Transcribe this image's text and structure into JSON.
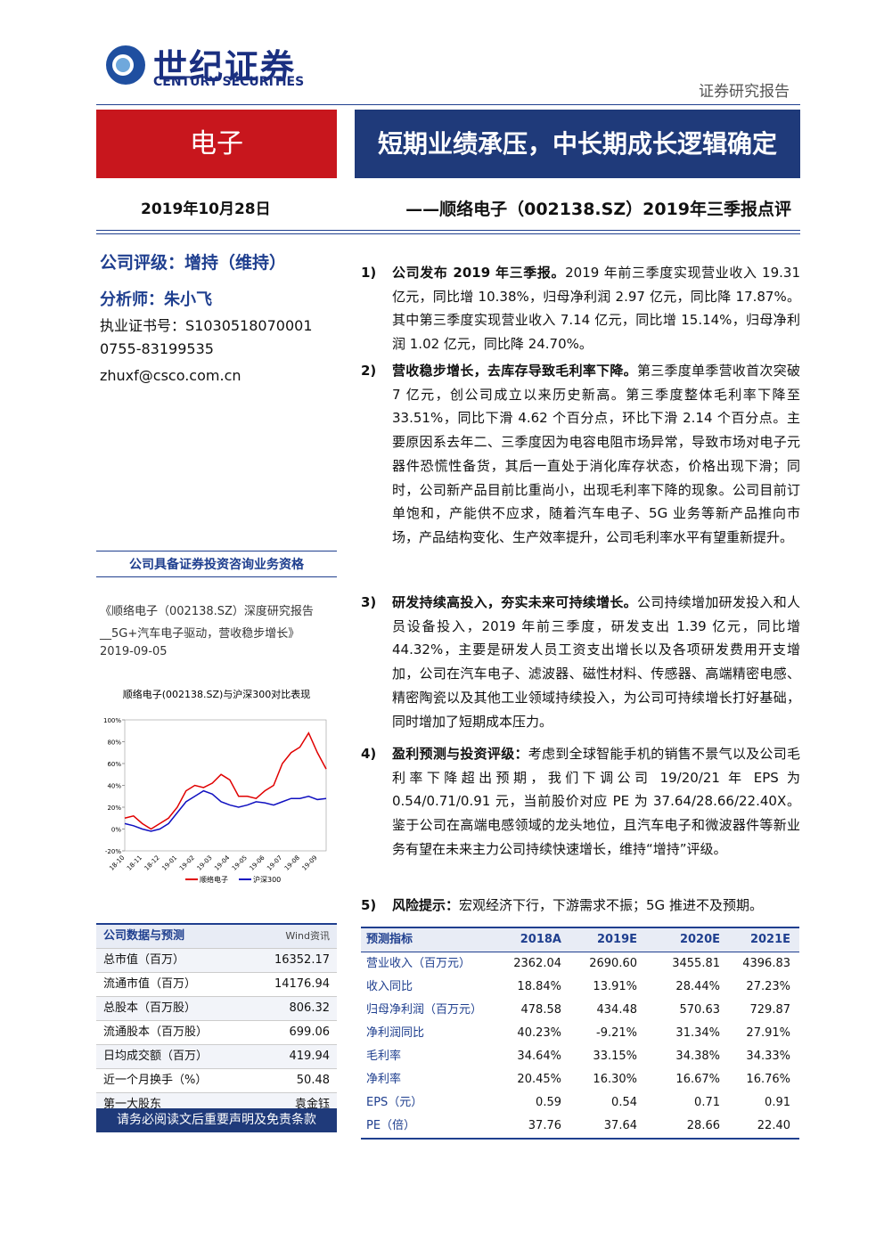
{
  "header": {
    "logo_cn": "世纪证券",
    "logo_en": "CENTURY SECURITIES",
    "report_type": "证券研究报告",
    "sector": "电子",
    "title": "短期业绩承压，中长期成长逻辑确定",
    "date": "2019年10月28日",
    "subtitle": "——顺络电子（002138.SZ）2019年三季报点评"
  },
  "sidebar": {
    "rating": "公司评级：增持（维持）",
    "analyst": "分析师：朱小飞",
    "license": "执业证书号：S1030518070001",
    "phone": "0755-83199535",
    "email": "zhuxf@csco.com.cn",
    "qualification": "公司具备证券投资咨询业务资格",
    "related_report": "《顺络电子（002138.SZ）深度研究报告__5G+汽车电子驱动，营收稳步增长》",
    "related_date": "2019-09-05"
  },
  "chart_data": {
    "type": "line",
    "title": "顺络电子(002138.SZ)与沪深300对比表现",
    "categories": [
      "18-10",
      null,
      "18-11",
      null,
      "18-12",
      null,
      "19-01",
      null,
      "19-02",
      null,
      "19-03",
      null,
      "19-04",
      null,
      "19-05",
      null,
      "19-06",
      null,
      "19-07",
      null,
      "19-08",
      null,
      "19-09",
      null
    ],
    "series": [
      {
        "name": "顺络电子",
        "color": "#e00000",
        "values": [
          10,
          12,
          5,
          0,
          5,
          10,
          20,
          35,
          40,
          38,
          42,
          50,
          45,
          30,
          30,
          28,
          35,
          40,
          60,
          70,
          75,
          88,
          70,
          55
        ]
      },
      {
        "name": "沪深300",
        "color": "#1010c0",
        "values": [
          5,
          3,
          0,
          -2,
          0,
          5,
          15,
          25,
          30,
          35,
          32,
          25,
          22,
          20,
          22,
          25,
          24,
          22,
          25,
          28,
          28,
          30,
          27,
          28
        ]
      }
    ],
    "ylim": [
      -20,
      100
    ],
    "yticks": [
      {
        "value": -20,
        "label": "-20%"
      },
      {
        "value": 0,
        "label": "0%"
      },
      {
        "value": 20,
        "label": "20%"
      },
      {
        "value": 40,
        "label": "40%"
      },
      {
        "value": 60,
        "label": "60%"
      },
      {
        "value": 80,
        "label": "80%"
      },
      {
        "value": 100,
        "label": "100%"
      }
    ]
  },
  "points": [
    {
      "num": "1)",
      "lead": "公司发布 2019 年三季报。",
      "body": "2019 年前三季度实现营业收入 19.31 亿元，同比增 10.38%，归母净利润 2.97 亿元，同比降 17.87%。其中第三季度实现营业收入 7.14 亿元，同比增 15.14%，归母净利润 1.02 亿元，同比降 24.70%。"
    },
    {
      "num": "2)",
      "lead": "营收稳步增长，去库存导致毛利率下降。",
      "body": "第三季度单季营收首次突破 7 亿元，创公司成立以来历史新高。第三季度整体毛利率下降至 33.51%，同比下滑 4.62 个百分点，环比下滑 2.14 个百分点。主要原因系去年二、三季度因为电容电阻市场异常，导致市场对电子元器件恐慌性备货，其后一直处于消化库存状态，价格出现下滑；同时，公司新产品目前比重尚小，出现毛利率下降的现象。公司目前订单饱和，产能供不应求，随着汽车电子、5G 业务等新产品推向市场，产品结构变化、生产效率提升，公司毛利率水平有望重新提升。"
    },
    {
      "num": "3)",
      "lead": "研发持续高投入，夯实未来可持续增长。",
      "body": "公司持续增加研发投入和人员设备投入，2019 年前三季度，研发支出 1.39 亿元，同比增 44.32%，主要是研发人员工资支出增长以及各项研发费用开支增加，公司在汽车电子、滤波器、磁性材料、传感器、高端精密电感、精密陶瓷以及其他工业领域持续投入，为公司可持续增长打好基础，同时增加了短期成本压力。"
    },
    {
      "num": "4)",
      "lead": "盈利预测与投资评级：",
      "body": "考虑到全球智能手机的销售不景气以及公司毛利率下降超出预期，我们下调公司 19/20/21 年 EPS 为 0.54/0.71/0.91 元，当前股价对应 PE 为 37.64/28.66/22.40X。鉴于公司在高端电感领域的龙头地位，且汽车电子和微波器件等新业务有望在未来主力公司持续快速增长，维持“增持”评级。"
    },
    {
      "num": "5)",
      "lead": "风险提示：",
      "body": "宏观经济下行，下游需求不振；5G 推进不及预期。"
    }
  ],
  "company_table": {
    "title": "公司数据与预测",
    "source": "Wind资讯",
    "rows": [
      [
        "总市值（百万）",
        "16352.17"
      ],
      [
        "流通市值（百万）",
        "14176.94"
      ],
      [
        "总股本（百万股）",
        "806.32"
      ],
      [
        "流通股本（百万股）",
        "699.06"
      ],
      [
        "日均成交额（百万）",
        "419.94"
      ],
      [
        "近一个月换手（%）",
        "50.48"
      ],
      [
        "第一大股东",
        "袁金钰"
      ]
    ]
  },
  "footer": "请务必阅读文后重要声明及免责条款",
  "forecast_table": {
    "header": [
      "预测指标",
      "2018A",
      "2019E",
      "2020E",
      "2021E"
    ],
    "rows": [
      [
        "营业收入（百万元）",
        "2362.04",
        "2690.60",
        "3455.81",
        "4396.83"
      ],
      [
        "收入同比",
        "18.84%",
        "13.91%",
        "28.44%",
        "27.23%"
      ],
      [
        "归母净利润（百万元）",
        "478.58",
        "434.48",
        "570.63",
        "729.87"
      ],
      [
        "净利润同比",
        "40.23%",
        "-9.21%",
        "31.34%",
        "27.91%"
      ],
      [
        "毛利率",
        "34.64%",
        "33.15%",
        "34.38%",
        "34.33%"
      ],
      [
        "净利率",
        "20.45%",
        "16.30%",
        "16.67%",
        "16.76%"
      ],
      [
        "EPS（元）",
        "0.59",
        "0.54",
        "0.71",
        "0.91"
      ],
      [
        "PE（倍）",
        "37.76",
        "37.64",
        "28.66",
        "22.40"
      ]
    ]
  }
}
